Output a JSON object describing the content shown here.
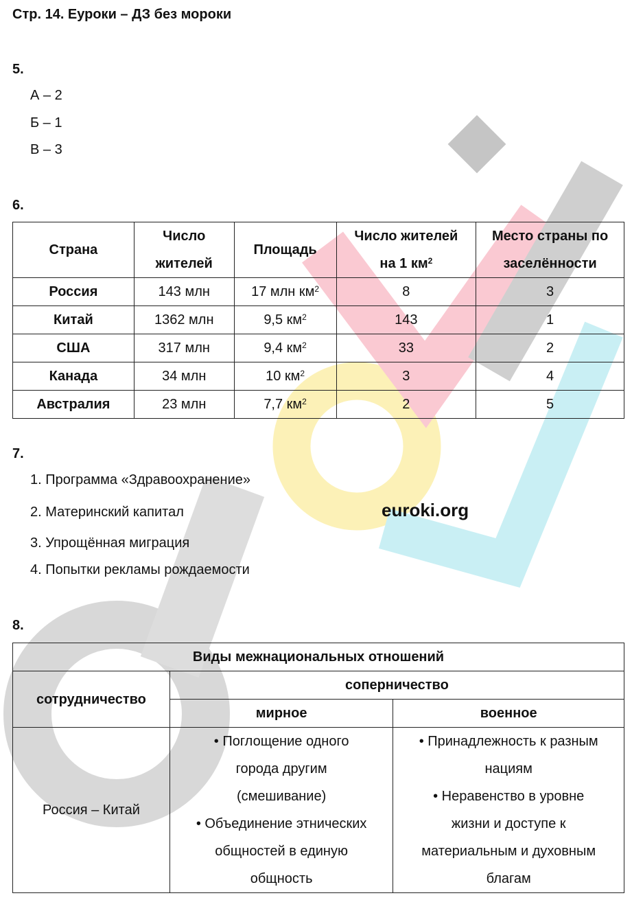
{
  "title": "Стр. 14. Еуроки – ДЗ без мороки",
  "watermark": {
    "site": "euroki.org",
    "logo": "euroki"
  },
  "task5": {
    "num": "5.",
    "items": [
      "А – 2",
      "Б – 1",
      "В – 3"
    ]
  },
  "task6": {
    "num": "6.",
    "headers": [
      [
        "Страна"
      ],
      [
        "Число",
        "жителей"
      ],
      [
        "Площадь"
      ],
      [
        "Число жителей",
        "на 1 км",
        "2"
      ],
      [
        "Место страны по",
        "заселённости"
      ]
    ],
    "rows": [
      {
        "country": "Россия",
        "pop": "143 млн",
        "area": "17 млн км",
        "sup": "2",
        "density": "8",
        "rank": "3"
      },
      {
        "country": "Китай",
        "pop": "1362 млн",
        "area": "9,5 км",
        "sup": "2",
        "density": "143",
        "rank": "1"
      },
      {
        "country": "США",
        "pop": "317 млн",
        "area": "9,4 км",
        "sup": "2",
        "density": "33",
        "rank": "2"
      },
      {
        "country": "Канада",
        "pop": "34 млн",
        "area": "10 км",
        "sup": "2",
        "density": "3",
        "rank": "4"
      },
      {
        "country": "Австралия",
        "pop": "23 млн",
        "area": "7,7 км",
        "sup": "2",
        "density": "2",
        "rank": "5"
      }
    ]
  },
  "task7": {
    "num": "7.",
    "items": [
      "1. Программа «Здравоохранение»",
      "2. Материнский капитал",
      "3. Упрощённая миграция",
      "4. Попытки рекламы рождаемости"
    ]
  },
  "task8": {
    "num": "8.",
    "title": "Виды межнациональных отношений",
    "coop": "сотрудничество",
    "rivalry": "соперничество",
    "peaceful": "мирное",
    "military": "военное",
    "coop_value": "Россия – Китай",
    "peaceful_lines": [
      "• Поглощение одного",
      "города другим",
      "(смешивание)",
      "• Объединение этнических",
      "общностей в единую",
      "общность"
    ],
    "military_lines": [
      "• Принадлежность к разным",
      "нациям",
      "• Неравенство в уровне",
      "жизни и доступе к",
      "материальным и духовным",
      "благам"
    ]
  }
}
